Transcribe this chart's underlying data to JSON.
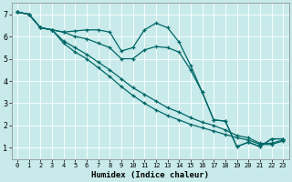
{
  "title": "",
  "xlabel": "Humidex (Indice chaleur)",
  "bg_color": "#c8eaea",
  "grid_color": "#b0d8d8",
  "line_color": "#006666",
  "xlim": [
    -0.5,
    23.5
  ],
  "ylim": [
    0.5,
    7.5
  ],
  "yticks": [
    1,
    2,
    3,
    4,
    5,
    6,
    7
  ],
  "xticks": [
    0,
    1,
    2,
    3,
    4,
    5,
    6,
    7,
    8,
    9,
    10,
    11,
    12,
    13,
    14,
    15,
    16,
    17,
    18,
    19,
    20,
    21,
    22,
    23
  ],
  "lines": [
    {
      "x": [
        0,
        1,
        2,
        3,
        4,
        5,
        6,
        7,
        8,
        9,
        10,
        11,
        12,
        13,
        14,
        15,
        16,
        17,
        18,
        19,
        20,
        21,
        22,
        23
      ],
      "y": [
        7.1,
        7.0,
        6.4,
        6.3,
        6.2,
        6.25,
        6.3,
        6.3,
        6.2,
        5.35,
        5.5,
        6.3,
        6.6,
        6.4,
        5.75,
        4.7,
        3.5,
        2.25,
        2.2,
        1.05,
        1.25,
        1.05,
        1.4,
        1.4
      ]
    },
    {
      "x": [
        0,
        1,
        2,
        3,
        4,
        5,
        6,
        7,
        8,
        9,
        10,
        11,
        12,
        13,
        14,
        15,
        16,
        17,
        18,
        19,
        20,
        21,
        22,
        23
      ],
      "y": [
        7.1,
        7.0,
        6.4,
        6.3,
        6.2,
        6.0,
        5.9,
        5.7,
        5.5,
        5.0,
        5.0,
        5.4,
        5.55,
        5.5,
        5.3,
        4.5,
        3.5,
        2.25,
        2.2,
        1.05,
        1.25,
        1.05,
        1.4,
        1.4
      ]
    },
    {
      "x": [
        0,
        1,
        2,
        3,
        4,
        5,
        6,
        7,
        8,
        9,
        10,
        11,
        12,
        13,
        14,
        15,
        16,
        17,
        18,
        19,
        20,
        21,
        22,
        23
      ],
      "y": [
        7.1,
        7.0,
        6.4,
        6.3,
        5.8,
        5.5,
        5.2,
        4.85,
        4.5,
        4.1,
        3.7,
        3.4,
        3.1,
        2.8,
        2.6,
        2.35,
        2.15,
        2.0,
        1.8,
        1.55,
        1.45,
        1.2,
        1.2,
        1.35
      ]
    },
    {
      "x": [
        0,
        1,
        2,
        3,
        4,
        5,
        6,
        7,
        8,
        9,
        10,
        11,
        12,
        13,
        14,
        15,
        16,
        17,
        18,
        19,
        20,
        21,
        22,
        23
      ],
      "y": [
        7.1,
        7.0,
        6.4,
        6.3,
        5.7,
        5.3,
        5.0,
        4.6,
        4.2,
        3.75,
        3.35,
        3.0,
        2.7,
        2.45,
        2.25,
        2.05,
        1.9,
        1.75,
        1.6,
        1.45,
        1.35,
        1.15,
        1.15,
        1.3
      ]
    }
  ]
}
